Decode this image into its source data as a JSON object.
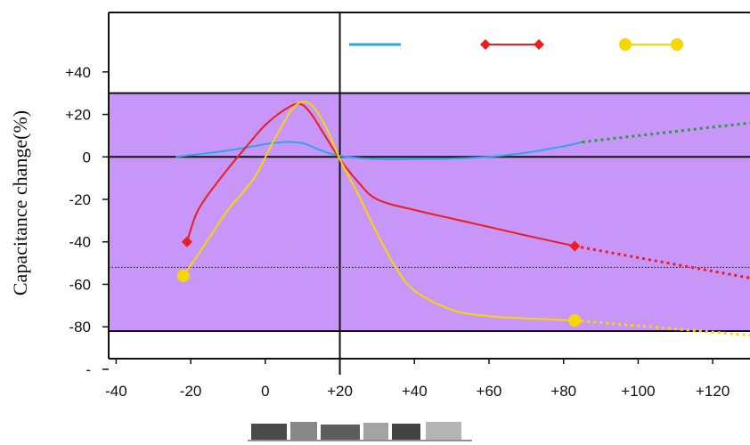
{
  "chart_data": {
    "type": "line",
    "title": "",
    "ylabel": "Capacitance change(%)",
    "xlabel": "",
    "xlim": [
      -42,
      130
    ],
    "ylim": [
      -95,
      68
    ],
    "x_ticks": [
      {
        "value": -40,
        "label": "-40"
      },
      {
        "value": -20,
        "label": "-20"
      },
      {
        "value": 0,
        "label": "0"
      },
      {
        "value": 20,
        "label": "+20"
      },
      {
        "value": 40,
        "label": "+40"
      },
      {
        "value": 60,
        "label": "+60"
      },
      {
        "value": 80,
        "label": "+80"
      },
      {
        "value": 100,
        "label": "+100"
      },
      {
        "value": 120,
        "label": "+120"
      }
    ],
    "y_ticks": [
      {
        "value": 40,
        "label": "+40"
      },
      {
        "value": 20,
        "label": "+20"
      },
      {
        "value": 0,
        "label": "0"
      },
      {
        "value": -20,
        "label": "-20"
      },
      {
        "value": -40,
        "label": "-40"
      },
      {
        "value": -60,
        "label": "-60"
      },
      {
        "value": -80,
        "label": "-80"
      },
      {
        "value": -100,
        "label": "-"
      }
    ],
    "band": {
      "y_min": -82,
      "y_max": 30,
      "color": "#c896f8"
    },
    "reference_lines": {
      "x": 20,
      "y_solid": 0,
      "y_dotted": -52
    },
    "series": [
      {
        "color": "#29a9e0",
        "marker": "none",
        "x": [
          -24,
          -10,
          0,
          5,
          10,
          15,
          20,
          30,
          40,
          50,
          60,
          70,
          80,
          85
        ],
        "y": [
          0,
          3,
          6,
          7,
          6.5,
          3,
          0.5,
          -1,
          -1,
          -0.8,
          0,
          2,
          5,
          7
        ],
        "extension": {
          "color": "#2a9a3a",
          "x": [
            85,
            130
          ],
          "y": [
            7,
            16
          ]
        }
      },
      {
        "color": "#ee1c1c",
        "marker": "diamond",
        "x": [
          -21,
          -18,
          -12,
          -5,
          0,
          5,
          9,
          12,
          16,
          20,
          25,
          30,
          40,
          50,
          60,
          70,
          83
        ],
        "y": [
          -40,
          -25,
          -10,
          5,
          15,
          22,
          25,
          21,
          10,
          -1,
          -12,
          -20,
          -25,
          -29,
          -33,
          -37,
          -42
        ],
        "extension": {
          "color": "#ee1c1c",
          "x": [
            83,
            130
          ],
          "y": [
            -42,
            -57
          ]
        },
        "markers_at": [
          {
            "x": -21,
            "y": -40
          },
          {
            "x": 83,
            "y": -42
          }
        ]
      },
      {
        "color": "#f5d800",
        "marker": "circle",
        "x": [
          -22,
          -18,
          -10,
          -3,
          3,
          8,
          12,
          16,
          20,
          25,
          30,
          35,
          40,
          50,
          60,
          70,
          83
        ],
        "y": [
          -56,
          -46,
          -25,
          -10,
          10,
          24,
          25,
          15,
          -1,
          -18,
          -36,
          -52,
          -63,
          -72,
          -75,
          -76,
          -77
        ],
        "extension": {
          "color": "#f5d800",
          "x": [
            83,
            130
          ],
          "y": [
            -77,
            -84
          ]
        },
        "markers_at": [
          {
            "x": -22,
            "y": -56
          },
          {
            "x": 83,
            "y": -77
          }
        ]
      }
    ]
  }
}
